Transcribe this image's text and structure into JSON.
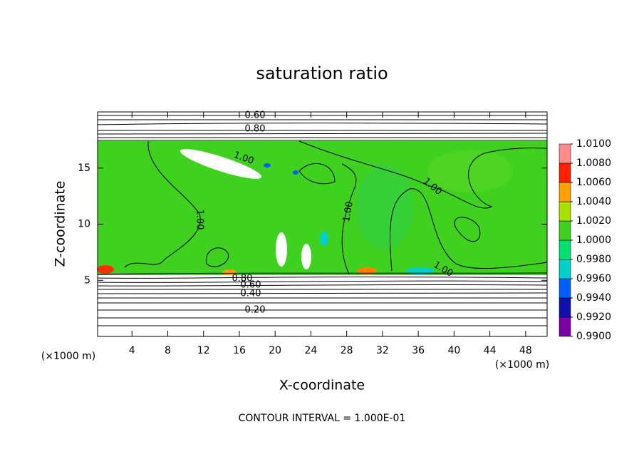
{
  "chart_data": {
    "type": "contour",
    "title": "saturation ratio",
    "x_label": "X-coordinate",
    "y_label": "Z-coordinate",
    "x_unit": "(×1000 m)",
    "annotation": "CONTOUR INTERVAL = 1.000E-01",
    "xlim": [
      0,
      50.4
    ],
    "xticks": [
      4,
      8,
      12,
      16,
      20,
      24,
      28,
      32,
      36,
      40,
      44,
      48
    ],
    "ylim": [
      0,
      20
    ],
    "yticks": [
      5,
      10,
      15
    ],
    "colorbar": {
      "lim": [
        0.99,
        1.01
      ],
      "ticks": [
        {
          "value": 0.99,
          "label": "0.9900"
        },
        {
          "value": 0.992,
          "label": "0.9920"
        },
        {
          "value": 0.994,
          "label": "0.9940"
        },
        {
          "value": 0.996,
          "label": "0.9960"
        },
        {
          "value": 0.998,
          "label": "0.9980"
        },
        {
          "value": 1.0,
          "label": "1.0000"
        },
        {
          "value": 1.002,
          "label": "1.0020"
        },
        {
          "value": 1.004,
          "label": "1.0040"
        },
        {
          "value": 1.006,
          "label": "1.0060"
        },
        {
          "value": 1.008,
          "label": "1.0080"
        },
        {
          "value": 1.01,
          "label": "1.0100"
        }
      ],
      "colors": [
        "#7a00a8",
        "#1010b0",
        "#0060ff",
        "#00d0c8",
        "#00e070",
        "#40d020",
        "#a8e000",
        "#ffa000",
        "#ff2000",
        "#ff8a8a"
      ]
    },
    "contour_labels": [
      {
        "value": 0.6,
        "label": "0.60"
      },
      {
        "value": 0.8,
        "label": "0.80"
      },
      {
        "value": 1.0,
        "label": "1.00"
      },
      {
        "value": 1.0,
        "label": "1.00"
      },
      {
        "value": 1.0,
        "label": "1.00"
      },
      {
        "value": 1.0,
        "label": "1.00"
      },
      {
        "value": 1.0,
        "label": "1.00"
      },
      {
        "value": 0.8,
        "label": "0.80"
      },
      {
        "value": 0.6,
        "label": "0.60"
      },
      {
        "value": 0.4,
        "label": "0.40"
      },
      {
        "value": 0.2,
        "label": "0.20"
      }
    ]
  }
}
